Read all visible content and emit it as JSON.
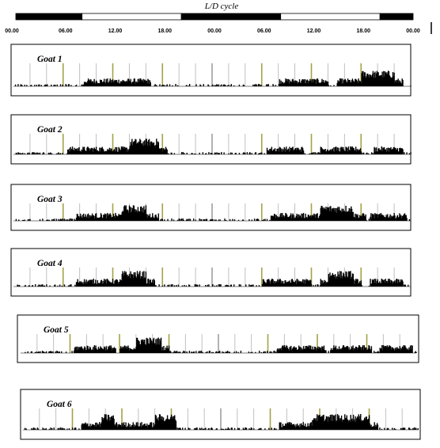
{
  "chart_data": {
    "type": "actogram",
    "light_dark_header": {
      "title": "L/D cycle",
      "segments": [
        "dark",
        "light",
        "dark",
        "light",
        "dark"
      ],
      "segment_hours": [
        [
          0,
          8
        ],
        [
          8,
          20
        ],
        [
          20,
          32
        ],
        [
          32,
          44
        ],
        [
          44,
          48
        ]
      ],
      "tick_labels": [
        "00.00",
        "06.00",
        "12.00",
        "18.00",
        "00.00",
        "06.00",
        "12.00",
        "18.00",
        "00.00"
      ],
      "tick_hours": [
        0,
        6,
        12,
        18,
        24,
        30,
        36,
        42,
        48
      ]
    },
    "x_range_hours": [
      0,
      48
    ],
    "panels": [
      {
        "label": "Goat 1",
        "active_bouts": [
          [
            8.5,
            16.5
          ],
          [
            32,
            38
          ],
          [
            39,
            47
          ]
        ],
        "peak_bouts": [
          [
            42,
            46
          ]
        ]
      },
      {
        "label": "Goat 2",
        "active_bouts": [
          [
            6.5,
            9
          ],
          [
            9,
            18.5
          ],
          [
            30.5,
            35
          ],
          [
            37,
            42
          ],
          [
            43.5,
            47
          ]
        ],
        "peak_bouts": [
          [
            14,
            17.5
          ]
        ]
      },
      {
        "label": "Goat 3",
        "active_bouts": [
          [
            7.5,
            11.5
          ],
          [
            11.5,
            17.5
          ],
          [
            31,
            38
          ],
          [
            38,
            42.5
          ],
          [
            43,
            47.5
          ]
        ],
        "peak_bouts": [
          [
            13,
            16
          ],
          [
            37,
            41
          ]
        ]
      },
      {
        "label": "Goat 4",
        "active_bouts": [
          [
            7.5,
            17
          ],
          [
            30,
            36
          ],
          [
            37,
            42
          ],
          [
            43,
            47
          ]
        ],
        "peak_bouts": [
          [
            13,
            16
          ],
          [
            38,
            41
          ]
        ]
      },
      {
        "label": "Goat 5",
        "active_bouts": [
          [
            6.5,
            11.5
          ],
          [
            12,
            18
          ],
          [
            31,
            37
          ],
          [
            37.5,
            42.5
          ],
          [
            43.5,
            47.5
          ]
        ],
        "peak_bouts": [
          [
            14,
            17
          ]
        ]
      },
      {
        "label": "Goat 6",
        "active_bouts": [
          [
            7,
            18.5
          ],
          [
            31,
            36
          ],
          [
            36,
            43
          ]
        ],
        "peak_bouts": [
          [
            9.5,
            11
          ],
          [
            16,
            18.5
          ],
          [
            35,
            42
          ]
        ]
      }
    ],
    "vertical_markers": {
      "every_hours": 2,
      "highlighted_hours": [
        6,
        12,
        18,
        30,
        36,
        42
      ],
      "highlight_color": "#a4a247"
    }
  },
  "colors": {
    "dark": "#000000",
    "light": "#ffffff",
    "marker": "#b8b8b8",
    "highlight": "#a4a247",
    "activity": "#000000"
  }
}
